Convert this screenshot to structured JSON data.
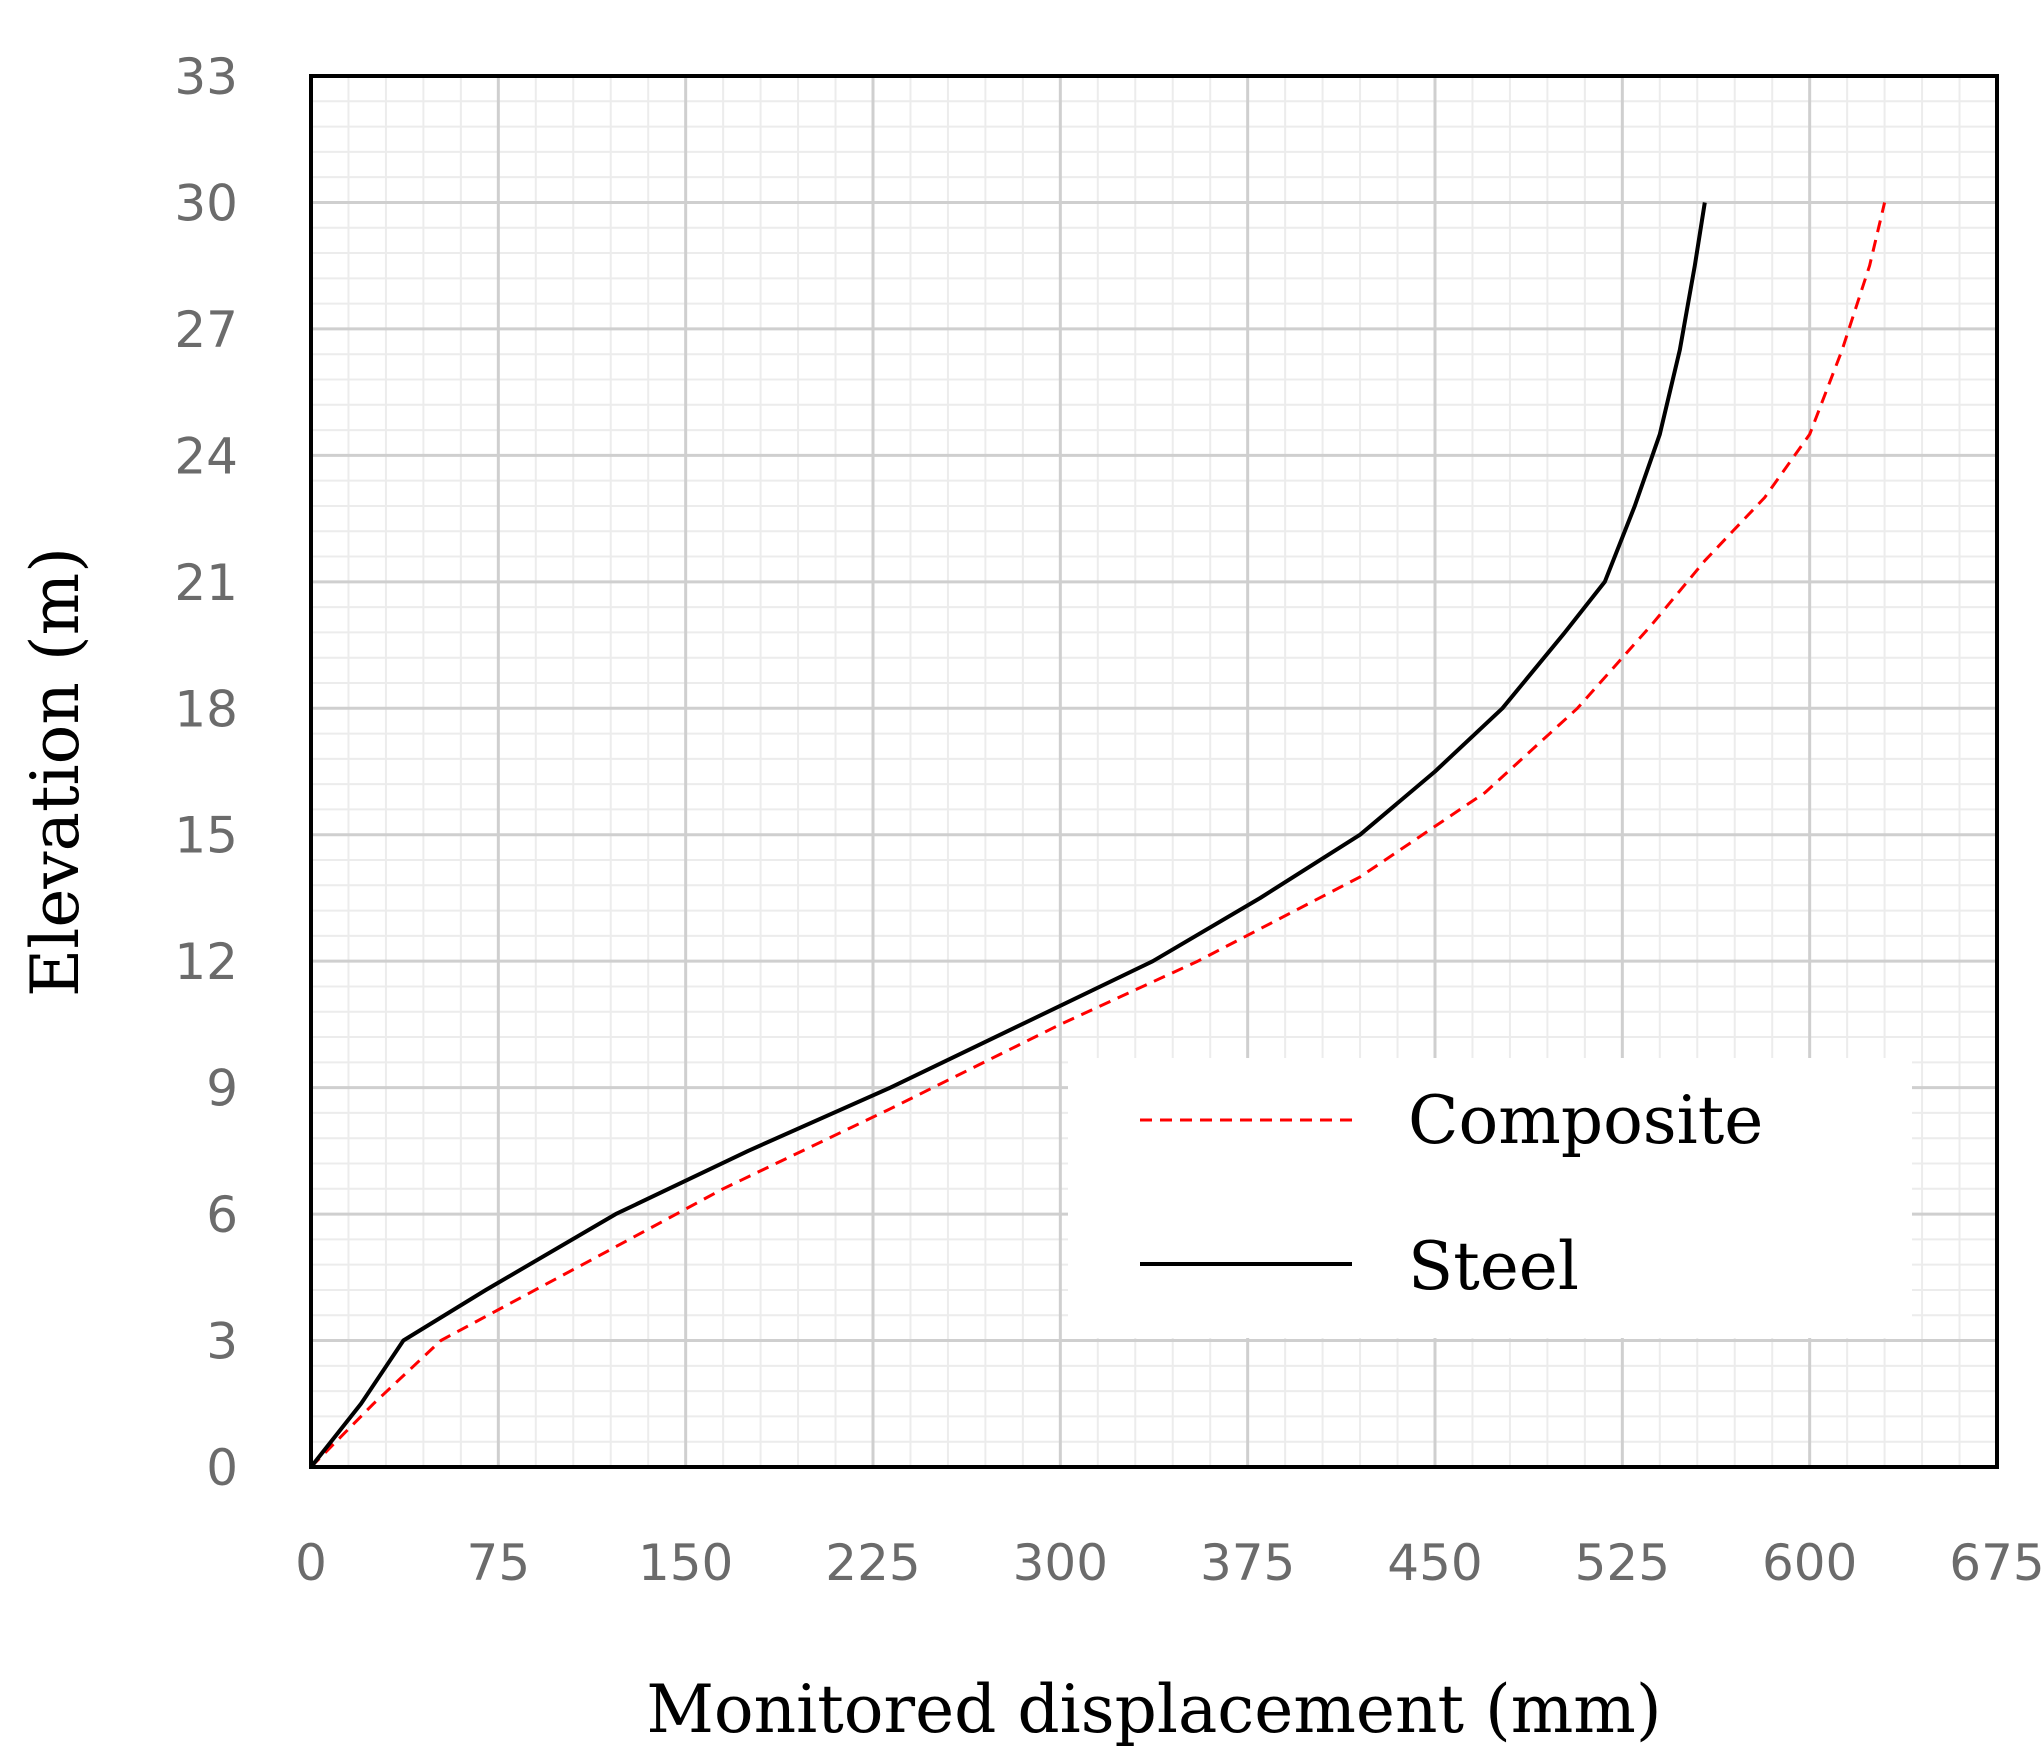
{
  "chart_data": {
    "type": "line",
    "xlabel": "Monitored displacement (mm)",
    "ylabel": "Elevation (m)",
    "xlim": [
      0,
      675
    ],
    "ylim": [
      0,
      33
    ],
    "xticks": [
      "0",
      "75",
      "150",
      "225",
      "300",
      "375",
      "450",
      "525",
      "600",
      "675"
    ],
    "yticks": [
      "0",
      "3",
      "6",
      "9",
      "12",
      "15",
      "18",
      "21",
      "24",
      "27",
      "30",
      "33"
    ],
    "grid": true,
    "legend_position": "lower-right",
    "series": [
      {
        "name": "Composite",
        "color": "#ff0000",
        "style": "dashed",
        "points": [
          [
            0,
            0
          ],
          [
            25,
            1.5
          ],
          [
            52,
            3
          ],
          [
            115,
            5
          ],
          [
            165,
            6.6
          ],
          [
            232,
            8.5
          ],
          [
            300,
            10.5
          ],
          [
            355,
            12
          ],
          [
            420,
            14
          ],
          [
            470,
            16
          ],
          [
            507,
            18
          ],
          [
            537,
            20
          ],
          [
            558,
            21.5
          ],
          [
            582,
            23
          ],
          [
            600,
            24.5
          ],
          [
            613,
            26.5
          ],
          [
            624,
            28.5
          ],
          [
            630,
            30
          ]
        ]
      },
      {
        "name": "Steel",
        "color": "#000000",
        "style": "solid",
        "points": [
          [
            0,
            0
          ],
          [
            20,
            1.5
          ],
          [
            37,
            3
          ],
          [
            70,
            4.2
          ],
          [
            122,
            6
          ],
          [
            175,
            7.5
          ],
          [
            232,
            9
          ],
          [
            295,
            10.8
          ],
          [
            337,
            12
          ],
          [
            380,
            13.5
          ],
          [
            420,
            15
          ],
          [
            450,
            16.5
          ],
          [
            477,
            18
          ],
          [
            502,
            19.8
          ],
          [
            518,
            21
          ],
          [
            530,
            22.8
          ],
          [
            540,
            24.5
          ],
          [
            548,
            26.5
          ],
          [
            554,
            28.5
          ],
          [
            558,
            30
          ]
        ]
      }
    ]
  },
  "colors": {
    "frame": "#000000",
    "major_grid": "#cfcfcf",
    "minor_grid": "#ececec",
    "tick_text": "#6b6b6b"
  }
}
